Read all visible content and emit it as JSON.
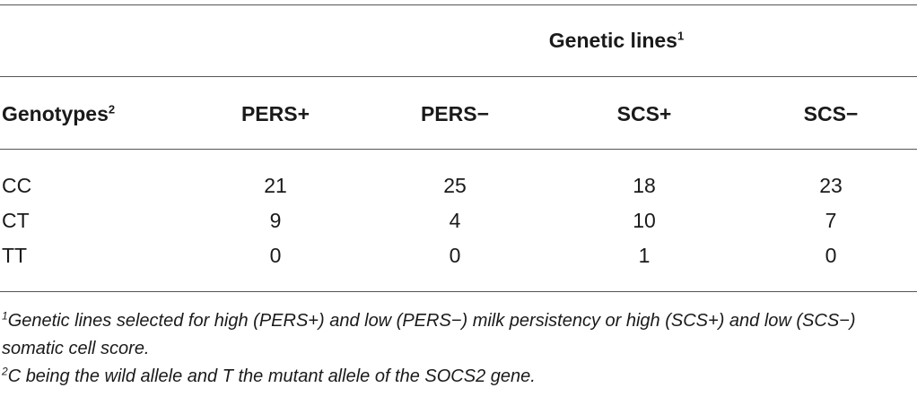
{
  "table": {
    "group_header": "Genetic lines",
    "group_header_mark": "1",
    "row_header": "Genotypes",
    "row_header_mark": "2",
    "columns": [
      "PERS+",
      "PERS−",
      "SCS+",
      "SCS−"
    ],
    "rows": [
      {
        "genotype": "CC",
        "values": [
          "21",
          "25",
          "18",
          "23"
        ]
      },
      {
        "genotype": "CT",
        "values": [
          "9",
          "4",
          "10",
          "7"
        ]
      },
      {
        "genotype": "TT",
        "values": [
          "0",
          "0",
          "1",
          "0"
        ]
      }
    ]
  },
  "footnotes": [
    {
      "mark": "1",
      "text": "Genetic lines selected for high (PERS+) and low (PERS−) milk persistency or high (SCS+) and low (SCS−) somatic cell score."
    },
    {
      "mark": "2",
      "text": "C being the wild allele and T the mutant allele of the SOCS2 gene."
    }
  ]
}
